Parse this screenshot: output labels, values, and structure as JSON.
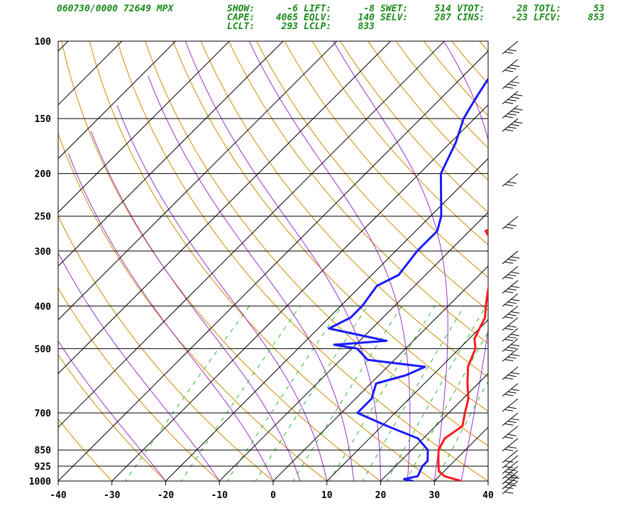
{
  "header": {
    "station_line": "060730/0000 72649  MPX",
    "rows": [
      [
        {
          "label": "SHOW:",
          "value": "-6"
        },
        {
          "label": "LIFT:",
          "value": "-8"
        },
        {
          "label": "SWET:",
          "value": "514"
        },
        {
          "label": "VTOT:",
          "value": "28"
        },
        {
          "label": "TOTL:",
          "value": "53"
        }
      ],
      [
        {
          "label": "CAPE:",
          "value": "4065"
        },
        {
          "label": "EQLV:",
          "value": "140"
        },
        {
          "label": "SELV:",
          "value": "287"
        },
        {
          "label": "CINS:",
          "value": "-23"
        },
        {
          "label": "LFCV:",
          "value": "853"
        }
      ],
      [
        {
          "label": "LCLT:",
          "value": "293"
        },
        {
          "label": "LCLP:",
          "value": "833"
        }
      ]
    ]
  },
  "colors": {
    "temperature": "#ff1a1a",
    "dewpoint": "#1a1aff",
    "dry_adiabat": "#d08a00",
    "moist_adiabat": "#9a30d0",
    "mixing_ratio": "#22bb22",
    "isotherm": "#000000",
    "header_text": "#1a8a1a"
  },
  "chart_data": {
    "type": "skew-t log-p sounding",
    "x_axis": {
      "label": "",
      "ticks": [
        "-40",
        "-30",
        "-20",
        "-10",
        "0",
        "10",
        "20",
        "30",
        "40"
      ],
      "range": [
        -40,
        40
      ],
      "unit": "°C at bottom"
    },
    "y_axis": {
      "label": "",
      "ticks": [
        "100",
        "150",
        "200",
        "250",
        "300",
        "400",
        "500",
        "700",
        "850",
        "925",
        "1000"
      ],
      "range": [
        1000,
        100
      ],
      "scale": "log",
      "unit": "hPa"
    },
    "grid": true,
    "series": [
      {
        "key": "temperature",
        "points": [
          [
            1000,
            35
          ],
          [
            975,
            31
          ],
          [
            950,
            29
          ],
          [
            900,
            27
          ],
          [
            875,
            26
          ],
          [
            850,
            25
          ],
          [
            800,
            24
          ],
          [
            750,
            25
          ],
          [
            700,
            23
          ],
          [
            650,
            21
          ],
          [
            600,
            18
          ],
          [
            550,
            15
          ],
          [
            500,
            13
          ],
          [
            475,
            11
          ],
          [
            450,
            10
          ],
          [
            425,
            9
          ],
          [
            400,
            7
          ],
          [
            375,
            5
          ],
          [
            350,
            3
          ],
          [
            325,
            1
          ],
          [
            300,
            -2
          ],
          [
            280,
            -5
          ],
          [
            270,
            -7
          ],
          [
            260,
            -5
          ],
          [
            250,
            -5
          ],
          [
            230,
            -7
          ],
          [
            200,
            -12
          ],
          [
            175,
            -16
          ],
          [
            150,
            -22
          ],
          [
            135,
            -22
          ],
          [
            125,
            -21
          ],
          [
            115,
            -21
          ],
          [
            105,
            -20
          ],
          [
            100,
            -19
          ]
        ]
      },
      {
        "key": "dewpoint",
        "points": [
          [
            1000,
            26
          ],
          [
            990,
            24
          ],
          [
            975,
            26
          ],
          [
            925,
            25
          ],
          [
            900,
            25
          ],
          [
            875,
            24
          ],
          [
            850,
            23
          ],
          [
            800,
            19
          ],
          [
            750,
            11
          ],
          [
            700,
            3
          ],
          [
            650,
            3
          ],
          [
            600,
            1
          ],
          [
            575,
            5
          ],
          [
            550,
            7
          ],
          [
            530,
            -5
          ],
          [
            500,
            -9
          ],
          [
            490,
            -14
          ],
          [
            480,
            -5
          ],
          [
            450,
            -18
          ],
          [
            425,
            -16
          ],
          [
            400,
            -16
          ],
          [
            360,
            -17
          ],
          [
            340,
            -15
          ],
          [
            300,
            -16
          ],
          [
            270,
            -16
          ],
          [
            250,
            -18
          ],
          [
            230,
            -21
          ],
          [
            200,
            -26
          ],
          [
            170,
            -29
          ],
          [
            150,
            -32
          ],
          [
            140,
            -33
          ],
          [
            130,
            -34
          ],
          [
            120,
            -35
          ],
          [
            115,
            -35
          ],
          [
            110,
            -35
          ],
          [
            105,
            -37
          ],
          [
            100,
            -38
          ]
        ]
      }
    ],
    "wind_profile": [
      {
        "p": 1000,
        "barbs": 1
      },
      {
        "p": 975,
        "barbs": 2
      },
      {
        "p": 950,
        "barbs": 3
      },
      {
        "p": 925,
        "barbs": 2
      },
      {
        "p": 900,
        "barbs": 2
      },
      {
        "p": 875,
        "barbs": 1
      },
      {
        "p": 850,
        "barbs": 1
      },
      {
        "p": 800,
        "barbs": 2
      },
      {
        "p": 750,
        "barbs": 2
      },
      {
        "p": 700,
        "barbs": 3
      },
      {
        "p": 650,
        "barbs": 2
      },
      {
        "p": 600,
        "barbs": 3
      },
      {
        "p": 550,
        "barbs": 3
      },
      {
        "p": 500,
        "barbs": 3
      },
      {
        "p": 475,
        "barbs": 3
      },
      {
        "p": 450,
        "barbs": 3
      },
      {
        "p": 425,
        "barbs": 2
      },
      {
        "p": 400,
        "barbs": 3
      },
      {
        "p": 375,
        "barbs": 3
      },
      {
        "p": 350,
        "barbs": 3
      },
      {
        "p": 325,
        "barbs": 3
      },
      {
        "p": 300,
        "barbs": 3
      },
      {
        "p": 250,
        "barbs": 2
      },
      {
        "p": 200,
        "barbs": 2
      },
      {
        "p": 150,
        "barbs": 4
      },
      {
        "p": 140,
        "barbs": 4
      },
      {
        "p": 130,
        "barbs": 4
      },
      {
        "p": 120,
        "barbs": 3
      },
      {
        "p": 110,
        "barbs": 3
      },
      {
        "p": 100,
        "barbs": 2
      }
    ]
  }
}
